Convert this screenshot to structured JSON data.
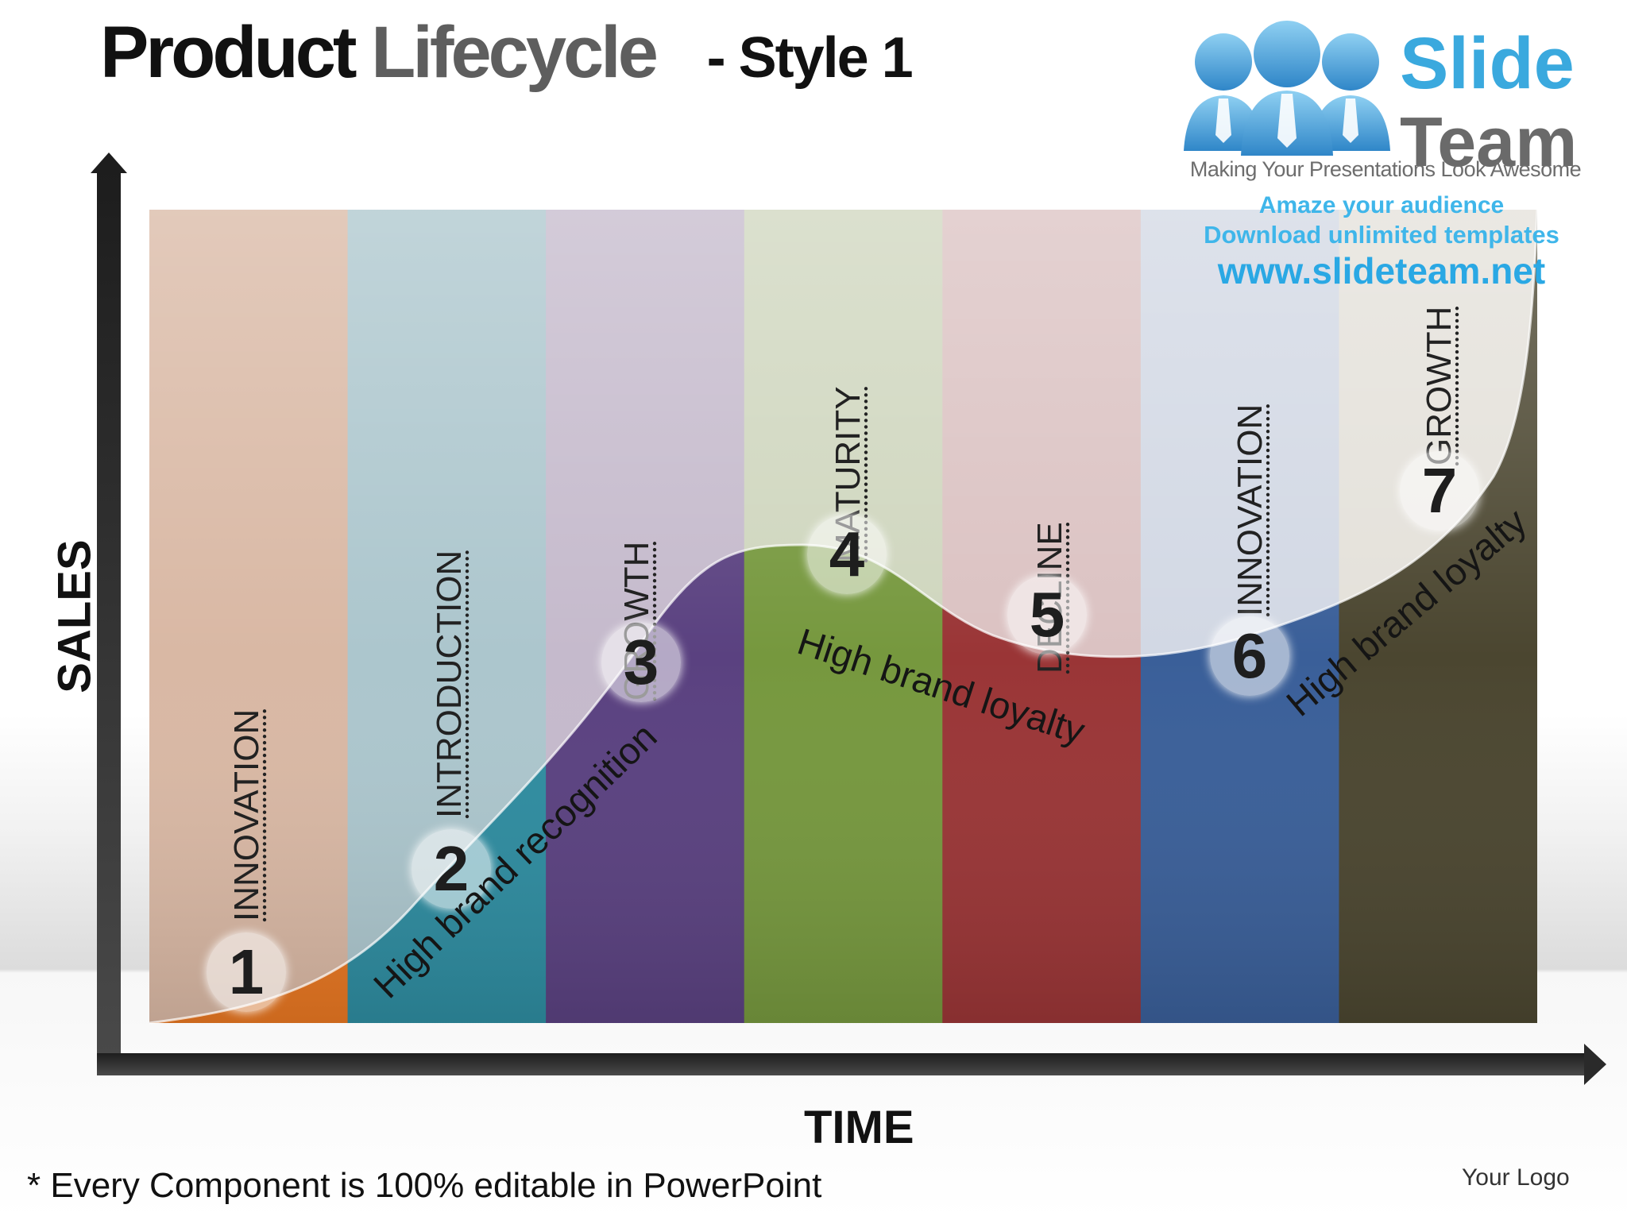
{
  "title": {
    "part1": "Product",
    "part2": "Lifecycle",
    "part3": "- Style 1"
  },
  "brand": {
    "name1": "Slide",
    "name2": "Team",
    "tagline": "Making Your Presentations Look Awesome",
    "promo_line1": "Amaze your audience",
    "promo_line2": "Download unlimited templates",
    "promo_url": "www.slideteam.net"
  },
  "axes": {
    "y_label": "SALES",
    "x_label": "TIME"
  },
  "stages": [
    {
      "number": "1",
      "name": "INNOVATION",
      "column_color": "#e87722",
      "band_color": "#d9b8a4"
    },
    {
      "number": "2",
      "name": "INTRODUCTION",
      "column_color": "#2e8ca0",
      "band_color": "#acc6cd"
    },
    {
      "number": "3",
      "name": "GROWTH",
      "column_color": "#5a4180",
      "band_color": "#c5bacc"
    },
    {
      "number": "4",
      "name": "MATURITY",
      "column_color": "#76983e",
      "band_color": "#cfd6be"
    },
    {
      "number": "5",
      "name": "DECLINE",
      "column_color": "#9a3536",
      "band_color": "#dbc2c2"
    },
    {
      "number": "6",
      "name": "INNOVATION",
      "column_color": "#3a5f99",
      "band_color": "#d2d8e4"
    },
    {
      "number": "7",
      "name": "GROWTH",
      "column_color": "#4b4630",
      "band_color": "#e4e1da"
    }
  ],
  "phrases": [
    {
      "text": "High brand recognition"
    },
    {
      "text": "High brand loyalty"
    },
    {
      "text": "High brand loyalty"
    }
  ],
  "footnote": "* Every  Component is 100%  editable in PowerPoint",
  "logo_placeholder": "Your Logo"
}
